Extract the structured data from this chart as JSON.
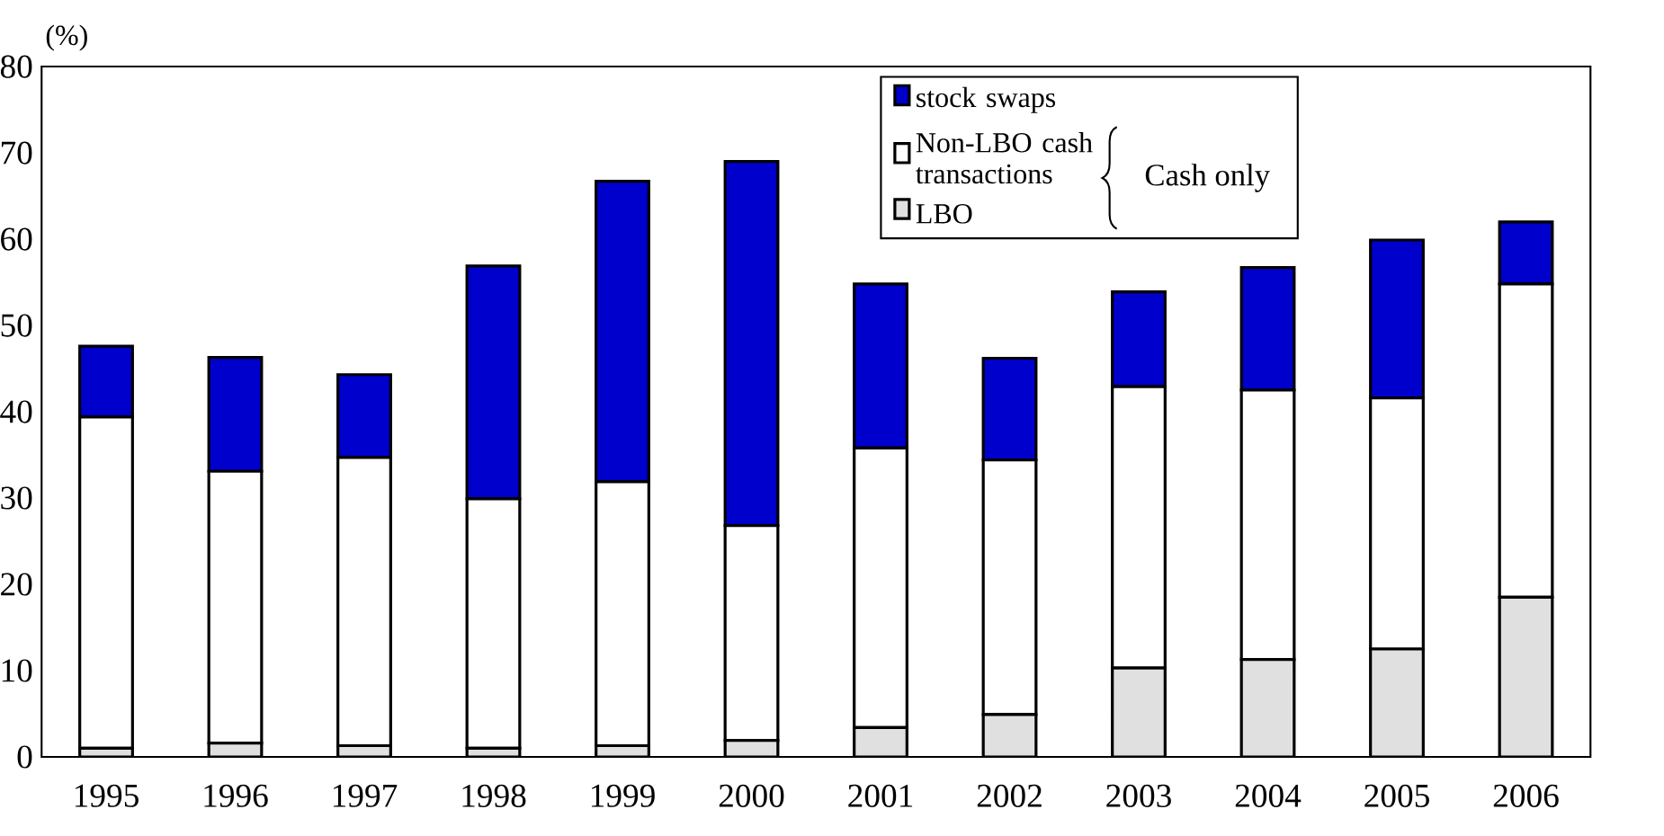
{
  "chart_data": {
    "type": "bar",
    "stacked": true,
    "ylabel": "(%)",
    "categories": [
      "1995",
      "1996",
      "1997",
      "1998",
      "1999",
      "2000",
      "2001",
      "2002",
      "2003",
      "2004",
      "2005",
      "2006"
    ],
    "series": [
      {
        "name": "LBO",
        "color": "#e0e0e0",
        "values": [
          1.0,
          1.6,
          1.3,
          1.0,
          1.3,
          1.9,
          3.4,
          4.9,
          10.3,
          11.3,
          12.5,
          18.5
        ]
      },
      {
        "name": "Non-LBO cash transactions",
        "color": "#ffffff",
        "values": [
          38.4,
          31.5,
          33.4,
          28.9,
          30.6,
          24.9,
          32.4,
          29.5,
          32.6,
          31.2,
          29.1,
          36.3
        ]
      },
      {
        "name": "stock swaps",
        "color": "#0000cc",
        "values": [
          8.2,
          13.2,
          9.6,
          27.0,
          34.8,
          42.2,
          19.0,
          11.8,
          11.0,
          14.2,
          18.3,
          7.2
        ]
      }
    ],
    "ylim": [
      0,
      80
    ],
    "yticks": [
      0,
      10,
      20,
      30,
      40,
      50,
      60,
      70,
      80
    ],
    "legend": "top right",
    "grid": false,
    "annotations": [
      "Cash only"
    ]
  }
}
